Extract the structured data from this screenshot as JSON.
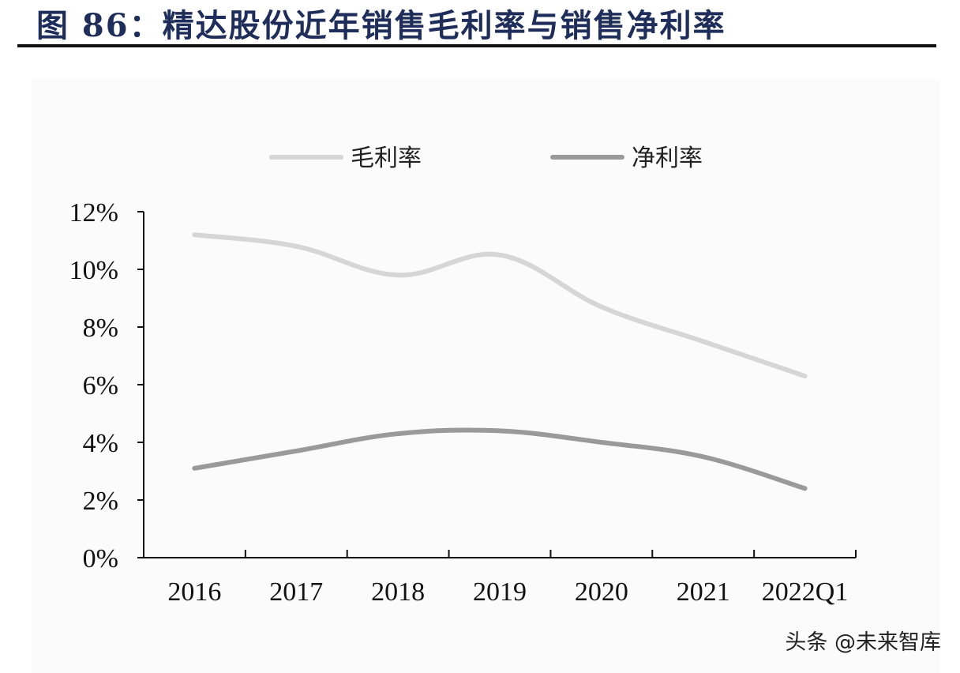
{
  "title": "图 86：精达股份近年销售毛利率与销售净利率",
  "watermark": "头条 @未来智库",
  "chart_data": {
    "type": "line",
    "categories": [
      "2016",
      "2017",
      "2018",
      "2019",
      "2020",
      "2021",
      "2022Q1"
    ],
    "series": [
      {
        "name": "毛利率",
        "color": "#d6d6d6",
        "values": [
          11.2,
          10.8,
          9.8,
          10.5,
          8.7,
          7.5,
          6.3
        ]
      },
      {
        "name": "净利率",
        "color": "#9a9a9a",
        "values": [
          3.1,
          3.7,
          4.3,
          4.4,
          4.0,
          3.5,
          2.4
        ]
      }
    ],
    "ylim": [
      0,
      12
    ],
    "yticks": [
      "0%",
      "2%",
      "4%",
      "6%",
      "8%",
      "10%",
      "12%"
    ],
    "legend_position": "top",
    "grid": false
  }
}
